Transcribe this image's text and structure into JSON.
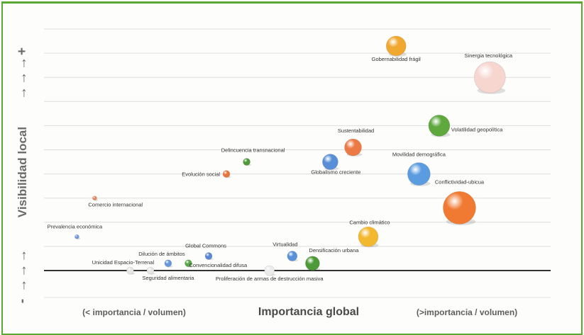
{
  "chart_data": {
    "type": "scatter",
    "title": "",
    "xlabel": "Importancia global",
    "ylabel": "Visibilidad local",
    "xlabel_left": "(< importancia / volumen)",
    "xlabel_right": "(>importancia / volumen)",
    "ylabel_high_marker": "→→→+",
    "ylabel_low_marker": "- →→→",
    "xlim": [
      0,
      100
    ],
    "ylim": [
      0,
      100
    ],
    "grid": true,
    "points": [
      {
        "label": "Gobernabilidad frágil",
        "x": 69.5,
        "y": 93,
        "size": 14,
        "color": "#f0a830"
      },
      {
        "label": "Sinergia tecnológica",
        "x": 88,
        "y": 80,
        "size": 22,
        "color": "#f7d6d0"
      },
      {
        "label": "Volatilidad geopolítica",
        "x": 78,
        "y": 60,
        "size": 15,
        "color": "#5ea83e"
      },
      {
        "label": "Sustentabilidad",
        "x": 61,
        "y": 51,
        "size": 12,
        "color": "#ec7a45"
      },
      {
        "label": "Movilidad demográfica",
        "x": 74,
        "y": 40,
        "size": 16,
        "color": "#5b9be0"
      },
      {
        "label": "Globalismo creciente",
        "x": 56.5,
        "y": 45,
        "size": 11,
        "color": "#5a8fd8"
      },
      {
        "label": "Delincuencia transnacional",
        "x": 40,
        "y": 45,
        "size": 5,
        "color": "#4c9a38"
      },
      {
        "label": "Evolución social",
        "x": 36,
        "y": 40,
        "size": 5,
        "color": "#e8773e"
      },
      {
        "label": "Conflictividad-ubicua",
        "x": 82,
        "y": 26,
        "size": 23,
        "color": "#f07a32"
      },
      {
        "label": "Comercio internacional",
        "x": 10,
        "y": 30,
        "size": 3,
        "color": "#e08860"
      },
      {
        "label": "Prevalencia económica",
        "x": 6.5,
        "y": 14,
        "size": 3,
        "color": "#6f9ad8"
      },
      {
        "label": "Cambio climático",
        "x": 64,
        "y": 14,
        "size": 14,
        "color": "#f2b830"
      },
      {
        "label": "Global Commons",
        "x": 32.5,
        "y": 6,
        "size": 5,
        "color": "#5b88d6"
      },
      {
        "label": "Dilución de ámbitos",
        "x": 24.5,
        "y": 3,
        "size": 5,
        "color": "#6898dc"
      },
      {
        "label": "Convencionalidad difusa",
        "x": 28.5,
        "y": 3,
        "size": 5,
        "color": "#5aa84a"
      },
      {
        "label": "Virtualidad",
        "x": 49,
        "y": 6,
        "size": 7,
        "color": "#5a92da"
      },
      {
        "label": "Densificación urbana",
        "x": 53,
        "y": 3,
        "size": 10,
        "color": "#4c9a38"
      },
      {
        "label": "Unicidad Espacio-Terrenal",
        "x": 17,
        "y": 0,
        "size": 5,
        "color": "#e6e6e6"
      },
      {
        "label": "Seguridad alimentaria",
        "x": 21,
        "y": 0,
        "size": 5,
        "color": "#e6e6e6"
      },
      {
        "label": "Proliferación de armas de destrucción masiva",
        "x": 44.5,
        "y": 0,
        "size": 7,
        "color": "#ececec"
      }
    ]
  }
}
